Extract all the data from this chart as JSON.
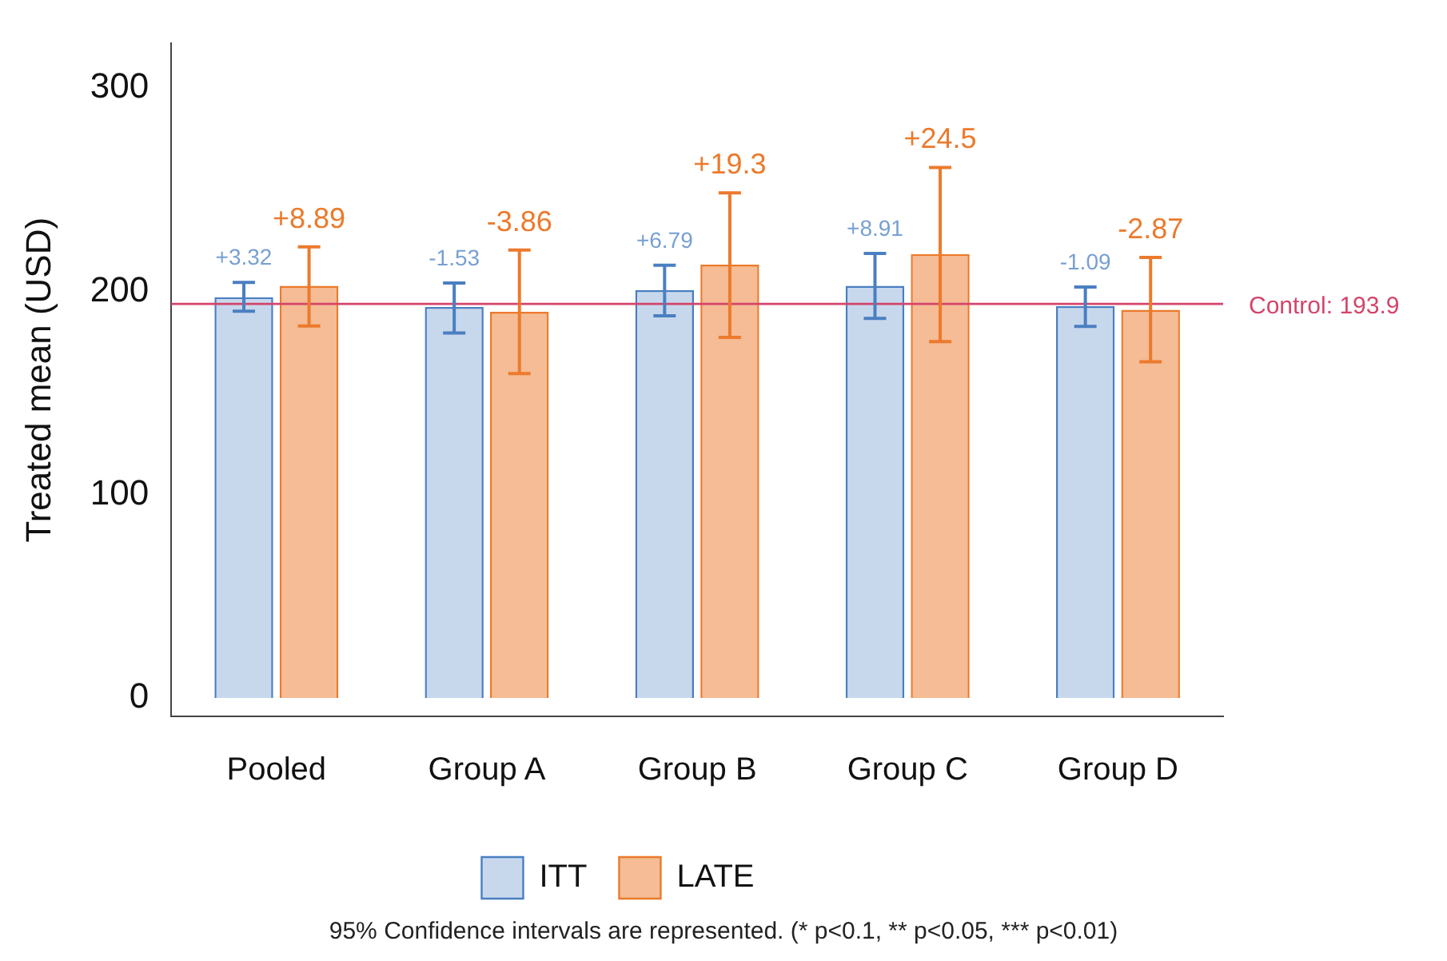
{
  "chart_data": {
    "type": "bar",
    "ylabel": "Treated mean (USD)",
    "categories": [
      "Pooled",
      "Group A",
      "Group B",
      "Group C",
      "Group D"
    ],
    "series": [
      {
        "name": "ITT",
        "color": "#4a7fc1",
        "values": [
          197.2,
          192.4,
          200.7,
          202.8,
          192.8
        ],
        "errors": [
          [
            190.3,
            204.5
          ],
          [
            179.6,
            204.2
          ],
          [
            188,
            212.9
          ],
          [
            186.8,
            218.7
          ],
          [
            182.8,
            202.2
          ]
        ]
      },
      {
        "name": "LATE",
        "color": "#ec7a2c",
        "values": [
          202.8,
          190,
          213.2,
          218.4,
          191
        ],
        "errors": [
          [
            183,
            222
          ],
          [
            159.6,
            220.4
          ],
          [
            177.4,
            248.5
          ],
          [
            175.4,
            261
          ],
          [
            165.4,
            216.8
          ]
        ]
      }
    ],
    "ylim": [
      -9,
      322
    ],
    "yticks": [
      0,
      100,
      200,
      300
    ],
    "grid": false,
    "legend": "bottom",
    "ref_lines": [
      {
        "axis": "y",
        "value": 193.9,
        "label": "Control: 193.9",
        "color": "#d4456b"
      }
    ],
    "annotations": [
      "+3.32",
      "+8.89",
      "-1.53",
      "-3.86",
      "+6.79",
      "+19.3",
      "+8.91",
      "+24.5",
      "-1.09",
      "-2.87",
      "95% Confidence intervals are represented. (* p<0.1, ** p<0.05, *** p<0.01)"
    ]
  }
}
